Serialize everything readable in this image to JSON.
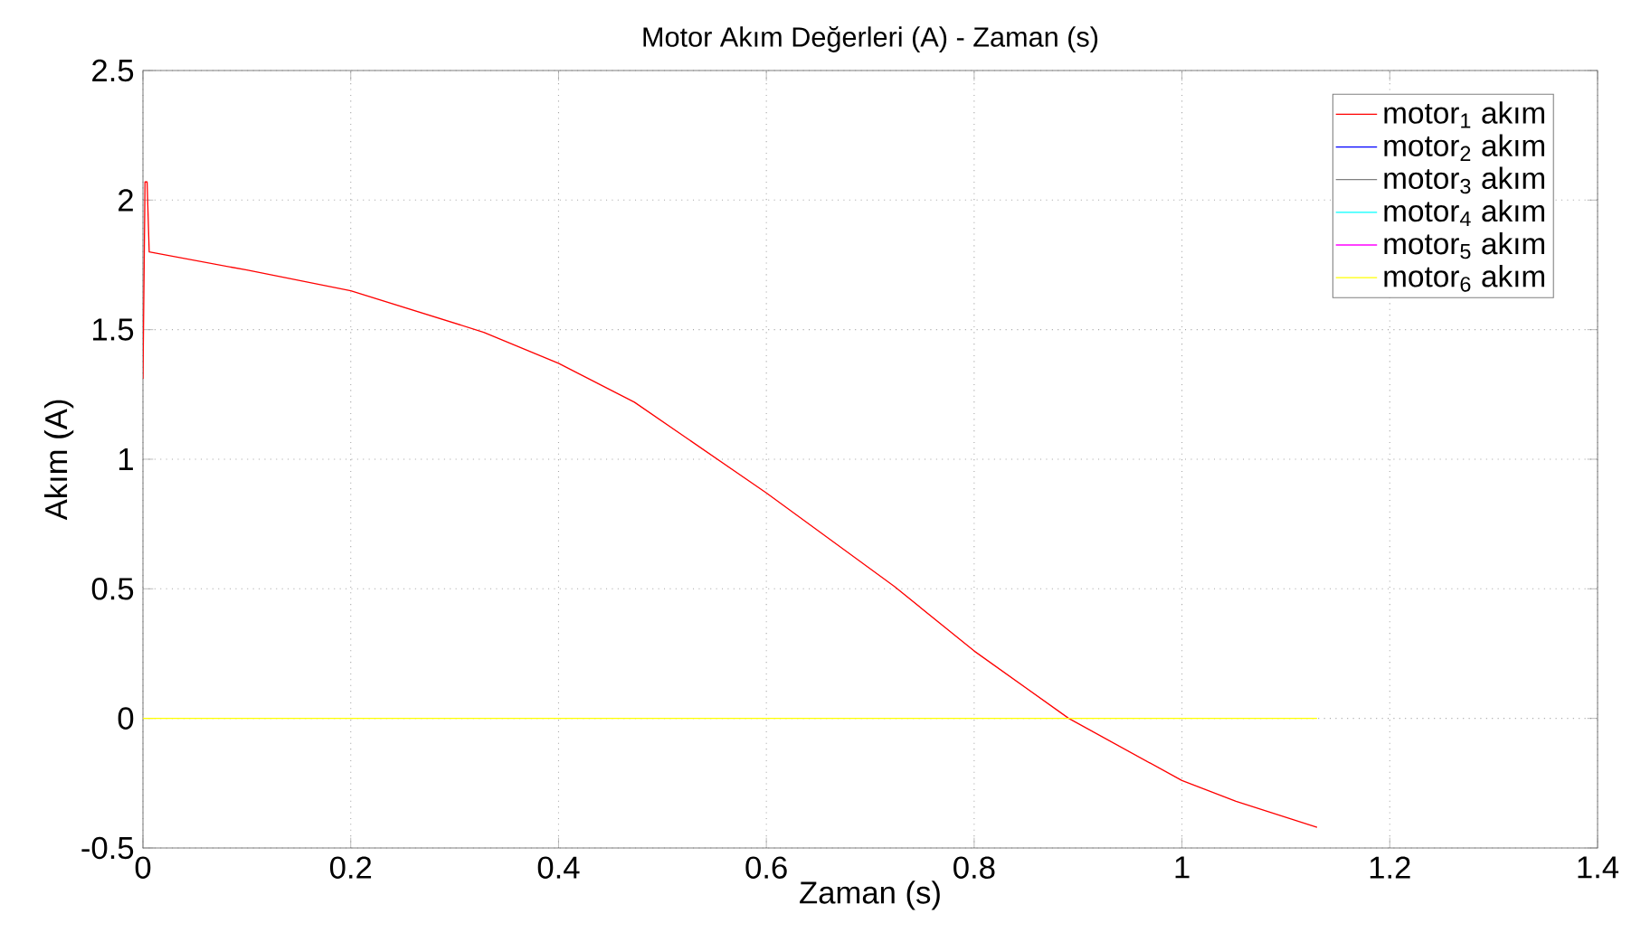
{
  "chart_data": {
    "type": "line",
    "title": "Motor Akım Değerleri (A) - Zaman (s)",
    "xlabel": "Zaman (s)",
    "ylabel": "Akım (A)",
    "xlim": [
      0,
      1.4
    ],
    "ylim": [
      -0.5,
      2.5
    ],
    "xticks": [
      0,
      0.2,
      0.4,
      0.6,
      0.8,
      1,
      1.2,
      1.4
    ],
    "yticks": [
      -0.5,
      0,
      0.5,
      1,
      1.5,
      2,
      2.5
    ],
    "grid": true,
    "legend": "top right",
    "marker": "none",
    "line_style": "solid",
    "series": [
      {
        "name": "motor$_{1}$ akım",
        "color": "#ff0000",
        "x": [
          0,
          0.002,
          0.004,
          0.006,
          0.1,
          0.2,
          0.328,
          0.4,
          0.473,
          0.6,
          0.723,
          0.8,
          0.891,
          1.0,
          1.052,
          1.13
        ],
        "values": [
          1.31,
          2.07,
          2.07,
          1.8,
          1.73,
          1.65,
          1.49,
          1.37,
          1.22,
          0.87,
          0.51,
          0.26,
          0,
          -0.24,
          -0.32,
          -0.42
        ]
      },
      {
        "name": "motor$_{2}$ akım",
        "color": "#0000ff"
      },
      {
        "name": "motor$_{3}$ akım",
        "color": "#808080"
      },
      {
        "name": "motor$_{4}$ akım",
        "color": "#00ffff"
      },
      {
        "name": "motor$_{5}$ akım",
        "color": "#ff00ff"
      },
      {
        "name": "motor$_{6}$ akım",
        "color": "#ffff00",
        "x": [
          0,
          1.13
        ],
        "values": [
          0,
          0
        ]
      }
    ]
  }
}
